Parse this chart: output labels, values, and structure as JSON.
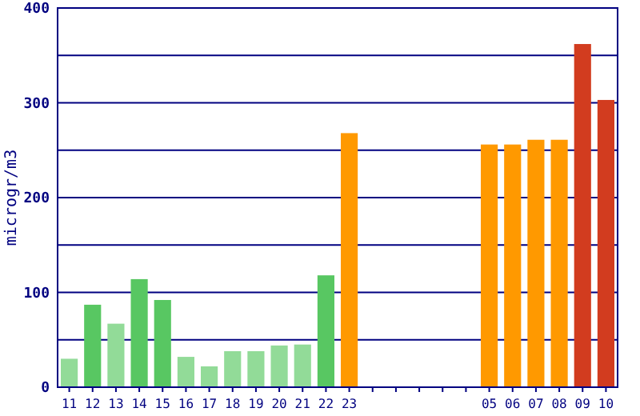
{
  "chart_data": {
    "type": "bar",
    "ylabel": "microgr/m3",
    "categories": [
      "11",
      "12",
      "13",
      "14",
      "15",
      "16",
      "17",
      "18",
      "19",
      "20",
      "21",
      "22",
      "23",
      null,
      null,
      null,
      null,
      null,
      "05",
      "06",
      "07",
      "08",
      "09",
      "10"
    ],
    "values": [
      30,
      87,
      67,
      114,
      92,
      32,
      22,
      38,
      38,
      44,
      45,
      118,
      268,
      null,
      null,
      null,
      null,
      null,
      256,
      256,
      261,
      261,
      362,
      303
    ],
    "colors": [
      "#92db98",
      "#58c762",
      "#92db98",
      "#58c762",
      "#58c762",
      "#92db98",
      "#92db98",
      "#92db98",
      "#92db98",
      "#92db98",
      "#92db98",
      "#58c762",
      "#ff9900",
      null,
      null,
      null,
      null,
      null,
      "#ff9900",
      "#ff9900",
      "#ff9900",
      "#ff9900",
      "#d23c1f",
      "#d23c1f"
    ],
    "ylim": [
      0,
      400
    ],
    "yticks": [
      0,
      {
        "value": 50,
        "label": null
      },
      100,
      {
        "value": 150,
        "label": null
      },
      200,
      {
        "value": 250,
        "label": null
      },
      300,
      {
        "value": 350,
        "label": null
      },
      400
    ],
    "grid": "y"
  }
}
